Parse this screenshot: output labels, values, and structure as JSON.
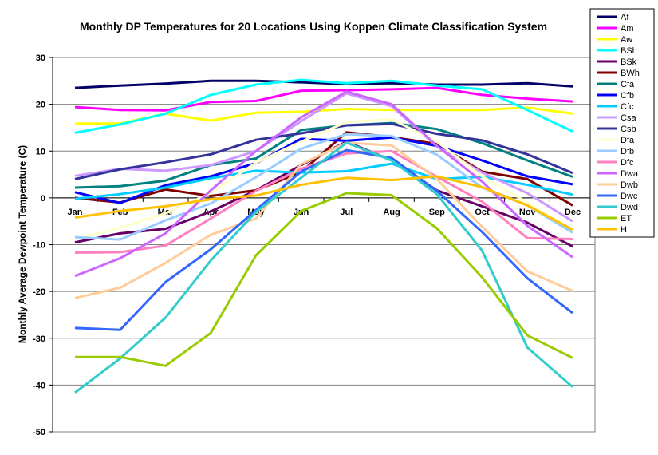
{
  "chart_data": {
    "type": "line",
    "title": "Monthly DP Temperatures for 20 Locations Using Koppen Climate Classification System",
    "xlabel": "",
    "ylabel": "Monthly Average Dewpoint Temperature (C)",
    "ylim": [
      -50,
      30
    ],
    "ytick_step": 10,
    "grid": "horizontal",
    "legend_position": "right",
    "categories": [
      "Jan",
      "Feb",
      "Mar",
      "Apr",
      "May",
      "Jun",
      "Jul",
      "Aug",
      "Sep",
      "Oct",
      "Nov",
      "Dec"
    ],
    "series": [
      {
        "name": "Af",
        "color": "#000066",
        "values": [
          23.5,
          24.0,
          24.4,
          25.0,
          25.0,
          24.7,
          24.3,
          24.5,
          24.2,
          24.2,
          24.5,
          23.8
        ]
      },
      {
        "name": "Am",
        "color": "#ff00ff",
        "values": [
          19.4,
          18.8,
          18.7,
          20.5,
          20.7,
          22.9,
          23.0,
          23.2,
          23.5,
          22.0,
          21.2,
          20.6
        ]
      },
      {
        "name": "Aw",
        "color": "#ffff00",
        "values": [
          15.9,
          15.9,
          18.0,
          16.5,
          18.2,
          18.4,
          19.0,
          18.8,
          18.8,
          18.8,
          19.3,
          18.0
        ]
      },
      {
        "name": "BSh",
        "color": "#00ffff",
        "values": [
          13.9,
          15.7,
          18.0,
          22.0,
          24.2,
          25.2,
          24.5,
          25.0,
          24.0,
          23.2,
          18.8,
          14.2
        ]
      },
      {
        "name": "BSk",
        "color": "#660066",
        "values": [
          -9.5,
          -7.6,
          -6.6,
          -2.9,
          1.6,
          7.0,
          12.0,
          8.0,
          1.6,
          -1.8,
          -5.3,
          -10.4
        ]
      },
      {
        "name": "BWh",
        "color": "#800000",
        "values": [
          0.0,
          -1.0,
          1.8,
          0.4,
          1.6,
          5.5,
          14.0,
          13.0,
          11.5,
          5.6,
          4.0,
          -1.6
        ]
      },
      {
        "name": "Cfa",
        "color": "#008080",
        "values": [
          2.2,
          2.5,
          3.7,
          7.0,
          8.4,
          14.5,
          15.5,
          16.0,
          14.7,
          11.7,
          8.0,
          4.5
        ]
      },
      {
        "name": "Cfb",
        "color": "#0000ff",
        "values": [
          1.2,
          -1.1,
          2.7,
          4.6,
          7.4,
          12.6,
          12.2,
          12.9,
          11.1,
          8.0,
          4.6,
          2.9
        ]
      },
      {
        "name": "Cfc",
        "color": "#00ccff",
        "values": [
          -0.2,
          0.8,
          2.2,
          4.2,
          5.8,
          5.4,
          5.7,
          7.3,
          4.0,
          4.5,
          2.8,
          0.7
        ]
      },
      {
        "name": "Csa",
        "color": "#cc99ff",
        "values": [
          4.7,
          6.2,
          5.8,
          7.0,
          10.0,
          16.4,
          22.3,
          19.6,
          11.0,
          5.4,
          1.0,
          -5.0
        ]
      },
      {
        "name": "Csb",
        "color": "#333399",
        "values": [
          4.0,
          6.1,
          7.6,
          9.3,
          12.4,
          13.8,
          15.5,
          15.8,
          13.7,
          12.3,
          9.3,
          5.3
        ]
      },
      {
        "name": "Dfa",
        "color": "#ffffcc",
        "values": [
          -8.8,
          -6.4,
          -3.3,
          1.0,
          7.5,
          12.0,
          16.2,
          16.8,
          12.0,
          4.6,
          -1.0,
          -6.8
        ]
      },
      {
        "name": "Dfb",
        "color": "#99ccff",
        "values": [
          -8.4,
          -8.9,
          -4.8,
          -1.2,
          4.4,
          10.5,
          13.6,
          13.2,
          9.2,
          2.2,
          -1.6,
          -7.4
        ]
      },
      {
        "name": "Dfc",
        "color": "#ff80c0",
        "values": [
          -11.7,
          -11.6,
          -10.2,
          -4.4,
          1.5,
          6.2,
          9.5,
          10.0,
          4.5,
          -0.8,
          -8.6,
          -8.8
        ]
      },
      {
        "name": "Dwa",
        "color": "#cc66ff",
        "values": [
          -16.7,
          -12.9,
          -7.6,
          1.6,
          10.0,
          17.2,
          22.7,
          20.0,
          11.1,
          3.5,
          -6.0,
          -12.7
        ]
      },
      {
        "name": "Dwb",
        "color": "#ffcc99",
        "values": [
          -21.4,
          -19.2,
          -13.9,
          -7.9,
          -4.4,
          7.2,
          11.8,
          11.2,
          4.0,
          -6.2,
          -15.7,
          -19.9
        ]
      },
      {
        "name": "Dwc",
        "color": "#3366ff",
        "values": [
          -27.8,
          -28.2,
          -18.0,
          -11.0,
          -2.6,
          5.6,
          10.2,
          8.5,
          1.5,
          -7.3,
          -17.2,
          -24.6
        ]
      },
      {
        "name": "Dwd",
        "color": "#33cccc",
        "values": [
          -41.6,
          -34.3,
          -25.6,
          -13.4,
          -3.0,
          4.3,
          11.8,
          8.0,
          0.8,
          -11.3,
          -32.0,
          -40.4
        ]
      },
      {
        "name": "ET",
        "color": "#99cc00",
        "values": [
          -34.0,
          -34.0,
          -35.9,
          -28.9,
          -12.3,
          -2.8,
          1.0,
          0.6,
          -6.5,
          -17.0,
          -29.4,
          -34.2
        ]
      },
      {
        "name": "H",
        "color": "#ffc000",
        "values": [
          -4.2,
          -2.8,
          -1.8,
          -0.3,
          0.5,
          2.8,
          4.3,
          3.8,
          4.6,
          2.3,
          -1.6,
          -6.8
        ]
      }
    ]
  }
}
